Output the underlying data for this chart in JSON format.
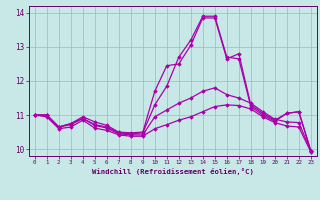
{
  "x": [
    0,
    1,
    2,
    3,
    4,
    5,
    6,
    7,
    8,
    9,
    10,
    11,
    12,
    13,
    14,
    15,
    16,
    17,
    18,
    19,
    20,
    21,
    22,
    23
  ],
  "lines": [
    [
      11.0,
      11.0,
      10.65,
      10.75,
      10.95,
      10.8,
      10.7,
      10.5,
      10.48,
      10.5,
      11.7,
      12.45,
      12.5,
      13.05,
      13.85,
      13.85,
      12.65,
      12.8,
      11.3,
      11.05,
      10.85,
      11.05,
      11.1,
      9.95
    ],
    [
      11.0,
      11.0,
      10.65,
      10.75,
      10.9,
      10.72,
      10.65,
      10.48,
      10.45,
      10.48,
      11.3,
      11.85,
      12.7,
      13.2,
      13.9,
      13.9,
      12.7,
      12.65,
      11.25,
      11.0,
      10.82,
      11.05,
      11.1,
      9.95
    ],
    [
      11.0,
      11.0,
      10.65,
      10.72,
      10.9,
      10.7,
      10.62,
      10.45,
      10.42,
      10.42,
      10.95,
      11.15,
      11.35,
      11.5,
      11.7,
      11.8,
      11.6,
      11.5,
      11.35,
      11.1,
      10.88,
      10.8,
      10.78,
      9.95
    ],
    [
      11.0,
      10.95,
      10.6,
      10.65,
      10.85,
      10.62,
      10.55,
      10.42,
      10.38,
      10.38,
      10.6,
      10.72,
      10.85,
      10.95,
      11.1,
      11.25,
      11.3,
      11.28,
      11.18,
      10.95,
      10.78,
      10.68,
      10.65,
      9.92
    ]
  ],
  "line_color": "#aa00aa",
  "bg_color": "#c8e8e8",
  "grid_color": "#99bbbb",
  "xlabel": "Windchill (Refroidissement éolien,°C)",
  "ylim": [
    9.8,
    14.2
  ],
  "xlim": [
    -0.5,
    23.5
  ],
  "yticks": [
    10,
    11,
    12,
    13,
    14
  ],
  "xticks": [
    0,
    1,
    2,
    3,
    4,
    5,
    6,
    7,
    8,
    9,
    10,
    11,
    12,
    13,
    14,
    15,
    16,
    17,
    18,
    19,
    20,
    21,
    22,
    23
  ],
  "xlabel_color": "#660066",
  "tick_color": "#660066",
  "marker": "D",
  "markersize": 1.8,
  "linewidth": 0.9
}
